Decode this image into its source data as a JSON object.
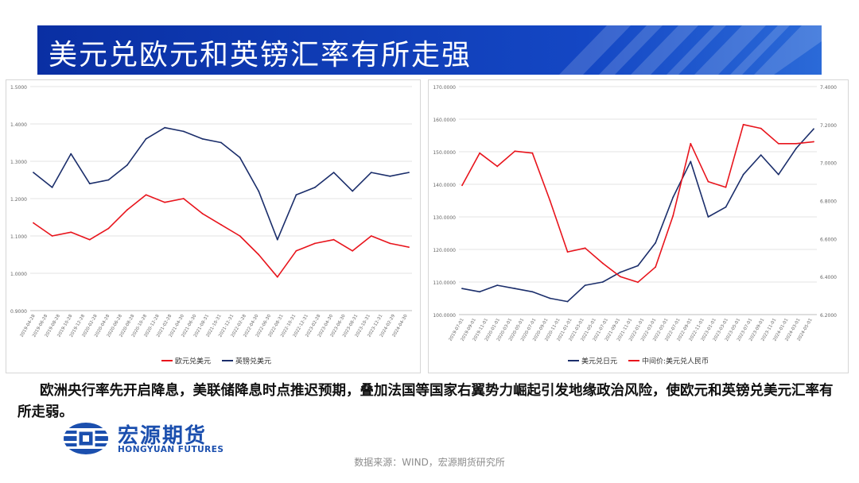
{
  "title": "美元兑欧元和英镑汇率有所走强",
  "caption": "欧洲央行率先开启降息，美联储降息时点推迟预期，叠加法国等国家右翼势力崛起引发地缘政治风险，使欧元和英镑兑美元汇率有所走弱。",
  "logo": {
    "cn": "宏源期货",
    "en": "HONGYUAN FUTURES",
    "color": "#1b4fae"
  },
  "source": "数据来源：WIND，宏源期货研究所",
  "chart_data": [
    {
      "type": "line",
      "ylim": [
        0.9,
        1.5
      ],
      "yticks": [
        "0.9000",
        "1.0000",
        "1.1000",
        "1.2000",
        "1.3000",
        "1.4000",
        "1.5000"
      ],
      "x": [
        "2019-06-28",
        "2019-09-28",
        "2019-12-28",
        "2020-03-28",
        "2020-06-28",
        "2020-09-28",
        "2020-12-28",
        "2021-03-28",
        "2021-06-28",
        "2021-09-28",
        "2021-12-28",
        "2022-03-28",
        "2022-06-28",
        "2022-09-28",
        "2022-12-28",
        "2023-03-28",
        "2023-06-28",
        "2023-09-28",
        "2023-12-28",
        "2024-03-28",
        "2024-06-28"
      ],
      "xticks": [
        "2019-04-28",
        "2019-06-28",
        "2019-08-28",
        "2019-10-28",
        "2019-12-28",
        "2020-02-28",
        "2020-04-28",
        "2020-06-28",
        "2020-08-28",
        "2020-10-28",
        "2020-12-28",
        "2021-02-28",
        "2021-04-30",
        "2021-06-30",
        "2021-08-31",
        "2021-10-31",
        "2021-12-31",
        "2022-02-28",
        "2022-04-30",
        "2022-06-30",
        "2022-08-31",
        "2022-10-31",
        "2022-12-31",
        "2023-02-28",
        "2023-04-30",
        "2023-06-30",
        "2023-08-31",
        "2023-10-31",
        "2023-12-31",
        "2024-02-29",
        "2024-04-30"
      ],
      "series": [
        {
          "name": "欧元兑美元",
          "color": "#e8141c",
          "values": [
            1.135,
            1.1,
            1.11,
            1.09,
            1.12,
            1.17,
            1.21,
            1.19,
            1.2,
            1.16,
            1.13,
            1.1,
            1.05,
            0.99,
            1.06,
            1.08,
            1.09,
            1.06,
            1.1,
            1.08,
            1.07
          ]
        },
        {
          "name": "英镑兑美元",
          "color": "#1b2e6b",
          "values": [
            1.27,
            1.23,
            1.32,
            1.24,
            1.25,
            1.29,
            1.36,
            1.39,
            1.38,
            1.36,
            1.35,
            1.31,
            1.22,
            1.09,
            1.21,
            1.23,
            1.27,
            1.22,
            1.27,
            1.26,
            1.27
          ]
        }
      ]
    },
    {
      "type": "line",
      "ylim": [
        100,
        170
      ],
      "yticks": [
        "100.0000",
        "110.0000",
        "120.0000",
        "130.0000",
        "140.0000",
        "150.0000",
        "160.0000",
        "170.0000"
      ],
      "ylim_right": [
        6.2,
        7.4
      ],
      "yticks_right": [
        "6.2000",
        "6.4000",
        "6.6000",
        "6.8000",
        "7.0000",
        "7.2000",
        "7.4000"
      ],
      "x": [
        "2019-07-01",
        "2019-10-01",
        "2020-01-01",
        "2020-04-01",
        "2020-07-01",
        "2020-10-01",
        "2021-01-01",
        "2021-04-01",
        "2021-07-01",
        "2021-10-01",
        "2022-01-01",
        "2022-04-01",
        "2022-07-01",
        "2022-10-01",
        "2023-01-01",
        "2023-04-01",
        "2023-07-01",
        "2023-10-01",
        "2024-01-01",
        "2024-04-01",
        "2024-06-01"
      ],
      "xticks": [
        "2019-07-01",
        "2019-09-01",
        "2019-11-01",
        "2020-01-01",
        "2020-03-01",
        "2020-05-01",
        "2020-07-01",
        "2020-09-01",
        "2020-11-01",
        "2021-01-01",
        "2021-03-01",
        "2021-05-01",
        "2021-07-01",
        "2021-09-01",
        "2021-11-01",
        "2022-01-01",
        "2022-03-01",
        "2022-05-01",
        "2022-07-01",
        "2022-09-01",
        "2022-11-01",
        "2023-01-01",
        "2023-03-01",
        "2023-05-01",
        "2023-07-01",
        "2023-09-01",
        "2023-11-01",
        "2024-01-01",
        "2024-03-01",
        "2024-05-01"
      ],
      "series": [
        {
          "name": "美元兑日元",
          "axis": "left",
          "color": "#1b2e6b",
          "values": [
            108,
            107,
            109,
            108,
            107,
            105,
            104,
            109,
            110,
            113,
            115,
            122,
            136,
            147,
            130,
            133,
            143,
            149,
            143,
            151,
            157
          ]
        },
        {
          "name": "中间价:美元兑人民币",
          "axis": "right",
          "color": "#e8141c",
          "values": [
            6.88,
            7.05,
            6.98,
            7.06,
            7.05,
            6.8,
            6.53,
            6.55,
            6.47,
            6.4,
            6.37,
            6.45,
            6.72,
            7.1,
            6.9,
            6.87,
            7.2,
            7.18,
            7.1,
            7.1,
            7.11
          ]
        }
      ]
    }
  ]
}
